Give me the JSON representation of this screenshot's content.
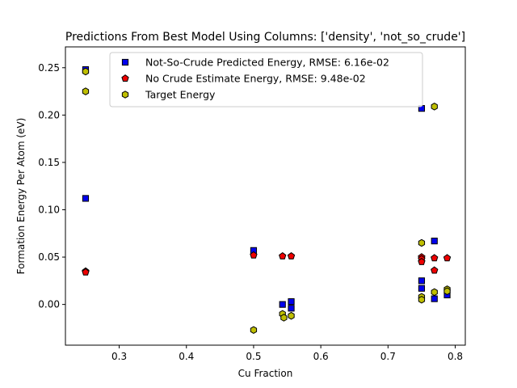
{
  "chart_data": {
    "type": "scatter",
    "title": "Predictions From Best Model Using Columns: ['density', 'not_so_crude']",
    "xlabel": "Cu Fraction",
    "ylabel": "Formation Energy Per Atom (eV)",
    "xlim": [
      0.22,
      0.815
    ],
    "ylim": [
      -0.043,
      0.272
    ],
    "xticks": [
      0.3,
      0.4,
      0.5,
      0.6,
      0.7,
      0.8
    ],
    "yticks": [
      0.0,
      0.05,
      0.1,
      0.15,
      0.2,
      0.25
    ],
    "xtick_labels": [
      "0.3",
      "0.4",
      "0.5",
      "0.6",
      "0.7",
      "0.8"
    ],
    "ytick_labels": [
      "0.00",
      "0.05",
      "0.10",
      "0.15",
      "0.20",
      "0.25"
    ],
    "legend_position": "upper-center",
    "series": [
      {
        "name": "Not-So-Crude Predicted Energy, RMSE: 6.16e-02",
        "marker": "square",
        "color": "#0000ee",
        "points": [
          [
            0.25,
            0.248
          ],
          [
            0.25,
            0.112
          ],
          [
            0.5,
            0.057
          ],
          [
            0.543,
            0.0
          ],
          [
            0.556,
            0.003
          ],
          [
            0.556,
            -0.004
          ],
          [
            0.75,
            0.207
          ],
          [
            0.75,
            0.025
          ],
          [
            0.75,
            0.017
          ],
          [
            0.769,
            0.067
          ],
          [
            0.769,
            0.006
          ],
          [
            0.788,
            0.01
          ]
        ]
      },
      {
        "name": "No Crude Estimate Energy, RMSE: 9.48e-02",
        "marker": "pentagon",
        "color": "#ee0000",
        "points": [
          [
            0.25,
            0.035
          ],
          [
            0.25,
            0.034
          ],
          [
            0.5,
            0.052
          ],
          [
            0.543,
            0.051
          ],
          [
            0.556,
            0.051
          ],
          [
            0.75,
            0.05
          ],
          [
            0.75,
            0.048
          ],
          [
            0.75,
            0.045
          ],
          [
            0.769,
            0.049
          ],
          [
            0.769,
            0.036
          ],
          [
            0.788,
            0.049
          ]
        ]
      },
      {
        "name": "Target Energy",
        "marker": "hexagon",
        "color": "#bfbf00",
        "points": [
          [
            0.25,
            0.246
          ],
          [
            0.25,
            0.225
          ],
          [
            0.5,
            -0.027
          ],
          [
            0.543,
            -0.01
          ],
          [
            0.545,
            -0.014
          ],
          [
            0.556,
            -0.012
          ],
          [
            0.75,
            0.065
          ],
          [
            0.75,
            0.008
          ],
          [
            0.75,
            0.005
          ],
          [
            0.769,
            0.209
          ],
          [
            0.769,
            0.013
          ],
          [
            0.788,
            0.016
          ],
          [
            0.788,
            0.014
          ]
        ]
      }
    ]
  }
}
